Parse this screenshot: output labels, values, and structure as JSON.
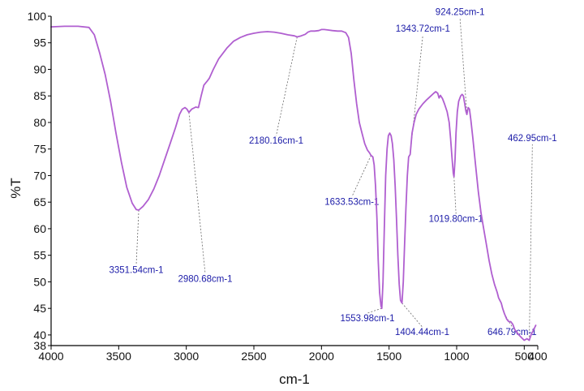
{
  "chart_data": {
    "type": "line",
    "xlabel": "cm-1",
    "ylabel": "%T",
    "xlim": [
      4000,
      400
    ],
    "ylim": [
      38,
      100
    ],
    "x_reversed": true,
    "grid": false,
    "line_color": "#b05fd0",
    "annotation_color": "#1c1ca8",
    "xticks": [
      {
        "value": 4000,
        "label": "4000"
      },
      {
        "value": 3500,
        "label": "3500"
      },
      {
        "value": 3000,
        "label": "3000"
      },
      {
        "value": 2500,
        "label": "2500"
      },
      {
        "value": 2000,
        "label": "2000"
      },
      {
        "value": 1500,
        "label": "1500"
      },
      {
        "value": 1000,
        "label": "1000"
      },
      {
        "value": 500,
        "label": "500"
      },
      {
        "value": 400,
        "label": "400"
      }
    ],
    "yticks": [
      {
        "value": 100,
        "label": "100"
      },
      {
        "value": 95,
        "label": "95"
      },
      {
        "value": 90,
        "label": "90"
      },
      {
        "value": 85,
        "label": "85"
      },
      {
        "value": 80,
        "label": "80"
      },
      {
        "value": 75,
        "label": "75"
      },
      {
        "value": 70,
        "label": "70"
      },
      {
        "value": 65,
        "label": "65"
      },
      {
        "value": 60,
        "label": "60"
      },
      {
        "value": 55,
        "label": "55"
      },
      {
        "value": 50,
        "label": "50"
      },
      {
        "value": 45,
        "label": "45"
      },
      {
        "value": 40,
        "label": "40"
      },
      {
        "value": 38,
        "label": "38"
      }
    ],
    "series": [
      {
        "points": [
          [
            4000,
            98.0
          ],
          [
            3900,
            98.1
          ],
          [
            3800,
            98.1
          ],
          [
            3720,
            97.9
          ],
          [
            3680,
            96.5
          ],
          [
            3640,
            93.0
          ],
          [
            3600,
            89.0
          ],
          [
            3560,
            84.0
          ],
          [
            3520,
            78.0
          ],
          [
            3480,
            72.5
          ],
          [
            3440,
            67.8
          ],
          [
            3400,
            64.8
          ],
          [
            3370,
            63.6
          ],
          [
            3351.54,
            63.5
          ],
          [
            3320,
            64.2
          ],
          [
            3280,
            65.5
          ],
          [
            3240,
            67.5
          ],
          [
            3200,
            70.0
          ],
          [
            3160,
            73.0
          ],
          [
            3120,
            76.0
          ],
          [
            3080,
            79.0
          ],
          [
            3050,
            81.5
          ],
          [
            3030,
            82.5
          ],
          [
            3010,
            82.8
          ],
          [
            2995,
            82.5
          ],
          [
            2980.68,
            81.9
          ],
          [
            2960,
            82.5
          ],
          [
            2930,
            82.9
          ],
          [
            2910,
            82.8
          ],
          [
            2890,
            85.0
          ],
          [
            2870,
            87.0
          ],
          [
            2855,
            87.5
          ],
          [
            2845,
            87.8
          ],
          [
            2830,
            88.3
          ],
          [
            2800,
            90.0
          ],
          [
            2760,
            92.0
          ],
          [
            2700,
            94.0
          ],
          [
            2650,
            95.3
          ],
          [
            2600,
            96.0
          ],
          [
            2550,
            96.5
          ],
          [
            2500,
            96.8
          ],
          [
            2450,
            97.0
          ],
          [
            2400,
            97.1
          ],
          [
            2350,
            97.0
          ],
          [
            2300,
            96.8
          ],
          [
            2250,
            96.5
          ],
          [
            2200,
            96.3
          ],
          [
            2180.16,
            96.1
          ],
          [
            2150,
            96.3
          ],
          [
            2120,
            96.6
          ],
          [
            2100,
            97.0
          ],
          [
            2080,
            97.2
          ],
          [
            2050,
            97.2
          ],
          [
            2020,
            97.3
          ],
          [
            2000,
            97.5
          ],
          [
            1980,
            97.5
          ],
          [
            1950,
            97.4
          ],
          [
            1920,
            97.3
          ],
          [
            1880,
            97.2
          ],
          [
            1850,
            97.2
          ],
          [
            1820,
            96.9
          ],
          [
            1800,
            96.0
          ],
          [
            1780,
            93.0
          ],
          [
            1760,
            88.0
          ],
          [
            1740,
            83.5
          ],
          [
            1720,
            80.0
          ],
          [
            1700,
            78.0
          ],
          [
            1680,
            76.0
          ],
          [
            1660,
            74.8
          ],
          [
            1645,
            74.3
          ],
          [
            1633.53,
            73.8
          ],
          [
            1620,
            73.5
          ],
          [
            1610,
            72.0
          ],
          [
            1600,
            68.0
          ],
          [
            1590,
            62.0
          ],
          [
            1580,
            54.0
          ],
          [
            1570,
            48.0
          ],
          [
            1560,
            45.5
          ],
          [
            1553.98,
            45.0
          ],
          [
            1545,
            50.0
          ],
          [
            1535,
            60.0
          ],
          [
            1525,
            70.0
          ],
          [
            1515,
            75.0
          ],
          [
            1505,
            77.5
          ],
          [
            1495,
            78.0
          ],
          [
            1485,
            77.5
          ],
          [
            1475,
            76.0
          ],
          [
            1465,
            73.0
          ],
          [
            1455,
            68.0
          ],
          [
            1445,
            62.0
          ],
          [
            1435,
            55.0
          ],
          [
            1425,
            49.5
          ],
          [
            1415,
            46.5
          ],
          [
            1404.44,
            46.0
          ],
          [
            1395,
            50.0
          ],
          [
            1385,
            57.0
          ],
          [
            1375,
            64.0
          ],
          [
            1365,
            70.0
          ],
          [
            1355,
            73.5
          ],
          [
            1343.72,
            74.0
          ],
          [
            1330,
            78.0
          ],
          [
            1315,
            80.0
          ],
          [
            1300,
            81.5
          ],
          [
            1280,
            82.5
          ],
          [
            1250,
            83.5
          ],
          [
            1220,
            84.3
          ],
          [
            1190,
            85.0
          ],
          [
            1170,
            85.5
          ],
          [
            1155,
            85.8
          ],
          [
            1140,
            85.5
          ],
          [
            1130,
            84.6
          ],
          [
            1120,
            85.1
          ],
          [
            1105,
            84.5
          ],
          [
            1090,
            83.5
          ],
          [
            1070,
            82.0
          ],
          [
            1055,
            80.0
          ],
          [
            1045,
            77.0
          ],
          [
            1035,
            73.5
          ],
          [
            1025,
            70.5
          ],
          [
            1019.8,
            69.8
          ],
          [
            1012,
            73.0
          ],
          [
            1005,
            78.0
          ],
          [
            995,
            82.0
          ],
          [
            985,
            84.0
          ],
          [
            970,
            85.0
          ],
          [
            960,
            85.3
          ],
          [
            950,
            85.0
          ],
          [
            940,
            83.5
          ],
          [
            932,
            82.2
          ],
          [
            924.25,
            81.5
          ],
          [
            915,
            82.8
          ],
          [
            905,
            82.5
          ],
          [
            895,
            80.5
          ],
          [
            880,
            77.0
          ],
          [
            860,
            72.0
          ],
          [
            840,
            67.0
          ],
          [
            820,
            63.0
          ],
          [
            800,
            60.0
          ],
          [
            780,
            57.0
          ],
          [
            760,
            54.0
          ],
          [
            740,
            51.5
          ],
          [
            720,
            49.5
          ],
          [
            700,
            48.0
          ],
          [
            690,
            47.0
          ],
          [
            680,
            46.5
          ],
          [
            670,
            46.0
          ],
          [
            660,
            45.0
          ],
          [
            646.79,
            44.0
          ],
          [
            630,
            43.0
          ],
          [
            615,
            42.5
          ],
          [
            600,
            42.5
          ],
          [
            585,
            42.0
          ],
          [
            570,
            41.0
          ],
          [
            555,
            40.5
          ],
          [
            540,
            40.0
          ],
          [
            520,
            39.5
          ],
          [
            500,
            39.0
          ],
          [
            480,
            39.3
          ],
          [
            462.95,
            39.0
          ],
          [
            450,
            40.0
          ],
          [
            430,
            41.0
          ],
          [
            415,
            41.8
          ]
        ]
      }
    ],
    "annotations": [
      {
        "label": "3351.54cm-1",
        "x": 3351.54,
        "y": 63.5,
        "label_x": 3370,
        "label_y": 51.7
      },
      {
        "label": "2980.68cm-1",
        "x": 2980.68,
        "y": 81.9,
        "label_x": 2860,
        "label_y": 50.0
      },
      {
        "label": "2180.16cm-1",
        "x": 2180.16,
        "y": 96.1,
        "label_x": 2335,
        "label_y": 76.0
      },
      {
        "label": "1633.53cm-1",
        "x": 1633.53,
        "y": 73.8,
        "label_x": 1775,
        "label_y": 64.5
      },
      {
        "label": "1553.98cm-1",
        "x": 1553.98,
        "y": 45.0,
        "label_x": 1660,
        "label_y": 42.6
      },
      {
        "label": "1343.72cm-1",
        "x": 1343.72,
        "y": 74.0,
        "label_x": 1250,
        "label_y": 97.1
      },
      {
        "label": "924.25cm-1",
        "x": 924.25,
        "y": 81.5,
        "label_x": 975,
        "label_y": 100.2
      },
      {
        "label": "1404.44cm-1",
        "x": 1404.44,
        "y": 46.0,
        "label_x": 1255,
        "label_y": 40.0
      },
      {
        "label": "1019.80cm-1",
        "x": 1019.8,
        "y": 69.8,
        "label_x": 1005,
        "label_y": 61.3
      },
      {
        "label": "462.95cm-1",
        "x": 462.95,
        "y": 39.0,
        "label_x": 440,
        "label_y": 76.5
      },
      {
        "label": "646.79cm-1",
        "x": 646.79,
        "y": 44.0,
        "label_x": 590,
        "label_y": 40.0
      }
    ]
  }
}
